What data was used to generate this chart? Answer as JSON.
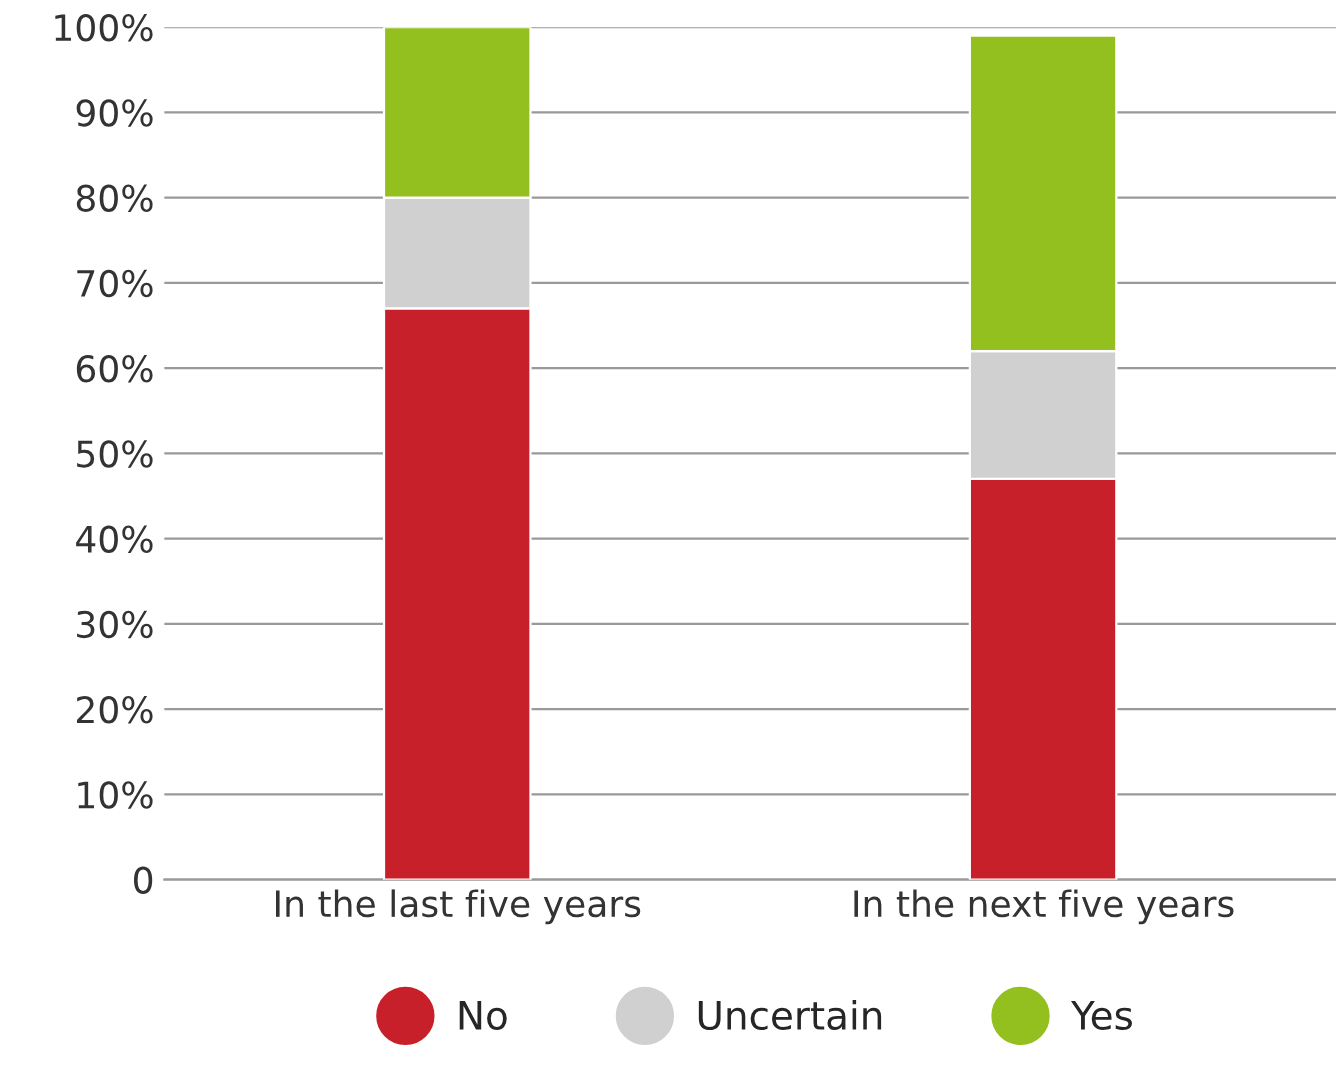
{
  "chart_data": {
    "type": "bar",
    "stacked": true,
    "categories": [
      "In the last five years",
      "In the next five years"
    ],
    "series": [
      {
        "name": "No",
        "color": "#c8202a",
        "values": [
          67,
          47
        ]
      },
      {
        "name": "Uncertain",
        "color": "#d0d0d0",
        "values": [
          13,
          15
        ]
      },
      {
        "name": "Yes",
        "color": "#93c01f",
        "values": [
          20,
          37
        ]
      }
    ],
    "ylim": [
      0,
      100
    ],
    "yticks": [
      {
        "value": 0,
        "label": "0"
      },
      {
        "value": 10,
        "label": "10%"
      },
      {
        "value": 20,
        "label": "20%"
      },
      {
        "value": 30,
        "label": "30%"
      },
      {
        "value": 40,
        "label": "40%"
      },
      {
        "value": 50,
        "label": "50%"
      },
      {
        "value": 60,
        "label": "60%"
      },
      {
        "value": 70,
        "label": "70%"
      },
      {
        "value": 80,
        "label": "80%"
      },
      {
        "value": 90,
        "label": "90%"
      },
      {
        "value": 100,
        "label": "100%"
      }
    ],
    "grid": "y",
    "legend": "bottom"
  }
}
